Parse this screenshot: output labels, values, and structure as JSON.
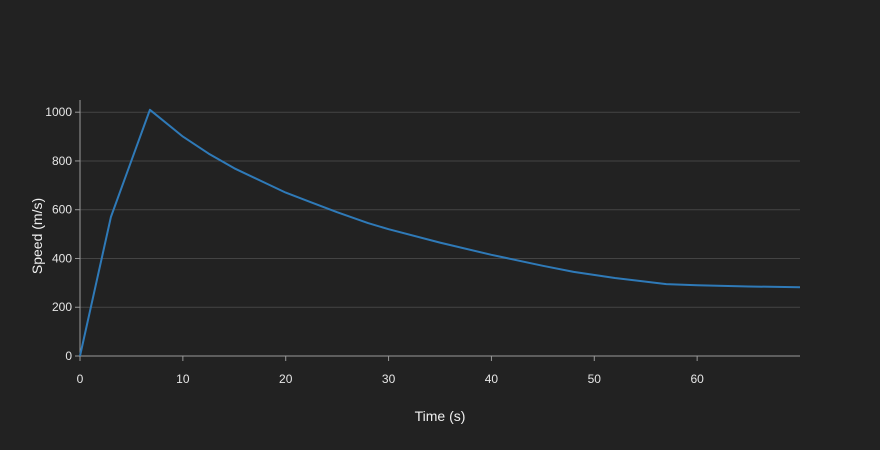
{
  "chart_data": {
    "type": "line",
    "title": "",
    "xlabel": "Time (s)",
    "ylabel": "Speed (m/s)",
    "xlim": [
      0,
      70
    ],
    "ylim": [
      0,
      1050
    ],
    "xticks": [
      0,
      10,
      20,
      30,
      40,
      50,
      60
    ],
    "yticks": [
      0,
      200,
      400,
      600,
      800,
      1000
    ],
    "grid": "horizontal",
    "legend": "none",
    "series": [
      {
        "color": "#2f7ab8",
        "x": [
          0,
          3,
          6.8,
          10,
          12.5,
          15,
          18,
          20,
          22.5,
          25,
          28,
          30,
          35,
          40,
          45,
          48,
          52,
          57,
          60,
          65,
          70
        ],
        "y": [
          0,
          570,
          1010,
          900,
          830,
          770,
          710,
          670,
          630,
          590,
          545,
          520,
          465,
          415,
          370,
          345,
          320,
          295,
          290,
          285,
          282
        ]
      }
    ]
  }
}
